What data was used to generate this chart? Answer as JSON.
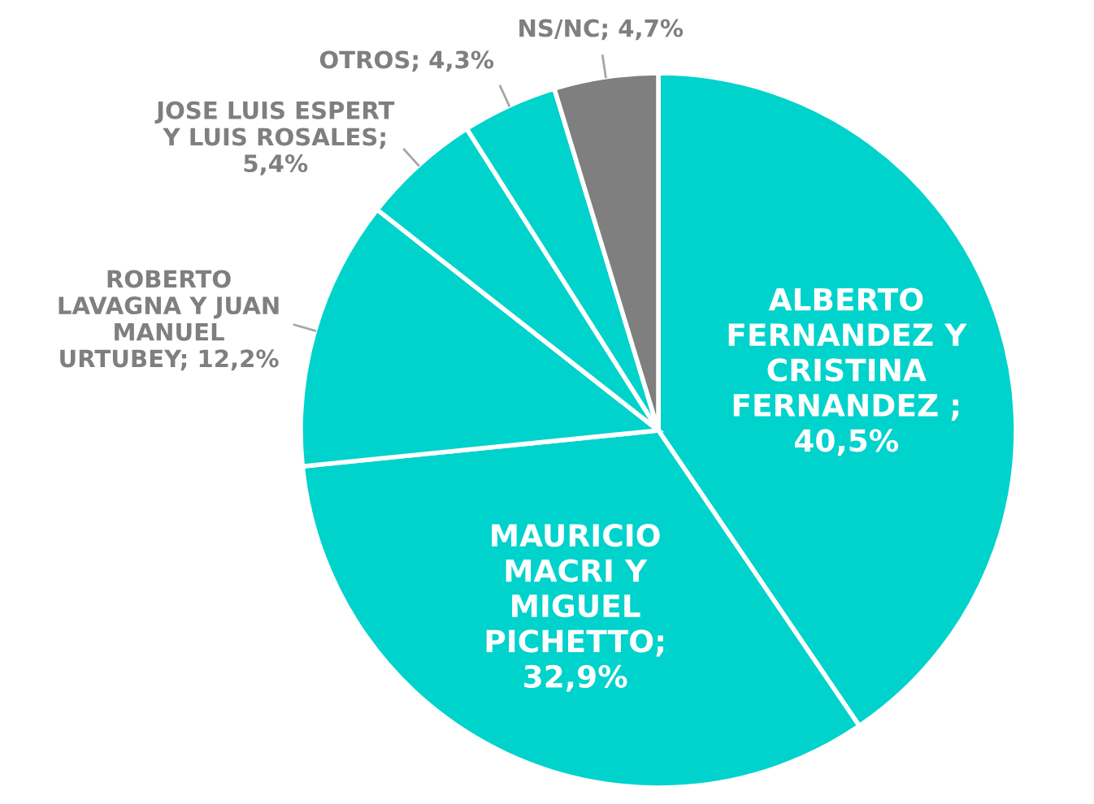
{
  "chart_data": {
    "type": "pie",
    "categories": [
      "ALBERTO\nFERNANDEZ Y\nCRISTINA\nFERNANDEZ ;\n40,5%",
      "MAURICIO\nMACRI Y\nMIGUEL\nPICHETTO;\n32,9%",
      "ROBERTO\nLAVAGNA Y JUAN\nMANUEL\nURTUBEY; 12,2%",
      "JOSE LUIS ESPERT\nY LUIS ROSALES;\n5,4%",
      "OTROS; 4,3%",
      "NS/NC; 4,7%"
    ],
    "values": [
      40.5,
      32.9,
      12.2,
      5.4,
      4.3,
      4.7
    ],
    "colors": [
      "#00d2cc",
      "#00d2cc",
      "#00d2cc",
      "#00d2cc",
      "#00d2cc",
      "#7f7f7f"
    ],
    "legend": false
  }
}
